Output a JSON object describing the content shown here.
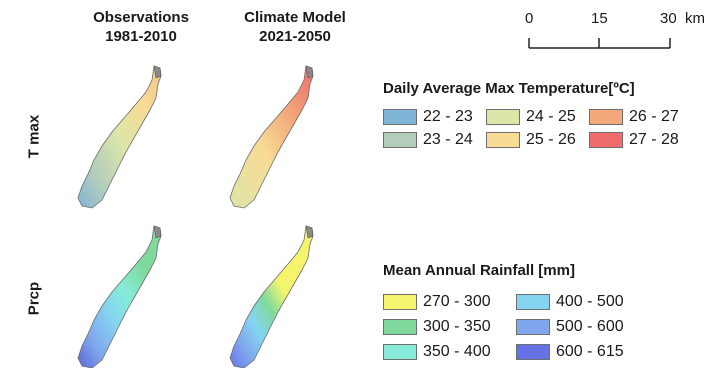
{
  "columns": [
    {
      "line1": "Observations",
      "line2": "1981-2010"
    },
    {
      "line1": "Climate Model",
      "line2": "2021-2050"
    }
  ],
  "rows": [
    "T max",
    "Prcp"
  ],
  "scale_bar": {
    "ticks": [
      "0",
      "15",
      "30"
    ],
    "unit": "km"
  },
  "legends": {
    "temperature": {
      "title": "Daily Average Max Temperature[ºC]",
      "items": [
        {
          "label": "22 - 23",
          "color": "#7fb5d7"
        },
        {
          "label": "24 - 25",
          "color": "#dde6a8"
        },
        {
          "label": "26 - 27",
          "color": "#f4a97c"
        },
        {
          "label": "23 - 24",
          "color": "#b3cdbc"
        },
        {
          "label": "25 - 26",
          "color": "#f8dc95"
        },
        {
          "label": "27 - 28",
          "color": "#ef6c6a"
        }
      ]
    },
    "rainfall": {
      "title": "Mean Annual Rainfall [mm]",
      "items": [
        {
          "label": "270 - 300",
          "color": "#f4f56d"
        },
        {
          "label": "400 - 500",
          "color": "#84d4f0"
        },
        {
          "label": "300 - 350",
          "color": "#7fd99c"
        },
        {
          "label": "500 - 600",
          "color": "#80a6ee"
        },
        {
          "label": "350 - 400",
          "color": "#86ecd8"
        },
        {
          "label": "600 - 615",
          "color": "#6673e6"
        }
      ]
    }
  },
  "map_colors": {
    "obs_tmax": [
      "#7fb5d7",
      "#b3cdbc",
      "#dde6a8",
      "#f8dc95",
      "#f4c48a"
    ],
    "model_tmax": [
      "#dde6a8",
      "#f8dc95",
      "#f4a97c",
      "#ef6c6a"
    ],
    "obs_prcp": [
      "#5767d6",
      "#80a6ee",
      "#84d4f0",
      "#86ecd8",
      "#7fd99c"
    ],
    "model_prcp": [
      "#6673e6",
      "#80a6ee",
      "#84d4f0",
      "#7fd99c",
      "#f4f56d"
    ],
    "tip": "#8a8a8a"
  }
}
